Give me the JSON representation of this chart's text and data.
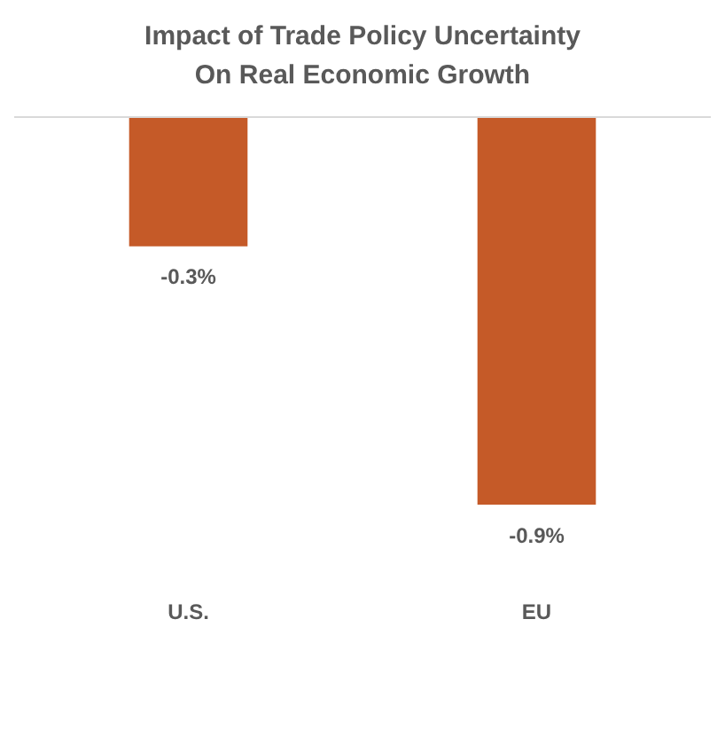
{
  "chart_data": {
    "type": "bar",
    "title": "Impact of Trade Policy Uncertainty On Real Economic Growth",
    "categories": [
      "U.S.",
      "EU"
    ],
    "values": [
      -0.3,
      -0.9
    ],
    "color": "#c55a28",
    "value_labels": [
      "-0.3%",
      "-0.9%"
    ],
    "legend": false
  }
}
